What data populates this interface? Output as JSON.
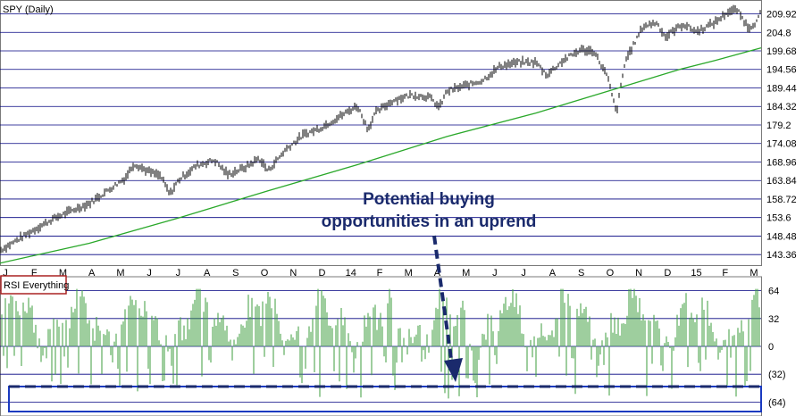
{
  "chart_data": [
    {
      "type": "line",
      "title": "SPY (Daily)",
      "y_ticks": [
        209.92,
        204.8,
        199.68,
        194.56,
        189.44,
        184.32,
        179.2,
        174.08,
        168.96,
        163.84,
        158.72,
        153.6,
        148.48,
        143.36
      ],
      "ylim": [
        140.2,
        213.5
      ],
      "x_ticks": [
        "J",
        "F",
        "M",
        "A",
        "M",
        "J",
        "J",
        "A",
        "S",
        "O",
        "N",
        "D",
        "14",
        "F",
        "M",
        "A",
        "M",
        "J",
        "J",
        "A",
        "S",
        "O",
        "N",
        "D",
        "15",
        "F",
        "M"
      ],
      "grid": true,
      "series": [
        {
          "role": "price",
          "color": "#000000",
          "x": [
            0,
            20,
            40,
            60,
            80,
            100,
            120,
            140,
            150,
            165,
            180,
            190,
            200,
            220,
            240,
            255,
            275,
            290,
            300,
            320,
            340,
            360,
            380,
            400,
            412,
            420,
            440,
            460,
            480,
            492,
            500,
            520,
            540,
            560,
            580,
            600,
            612,
            630,
            650,
            665,
            680,
            690,
            700,
            720,
            735,
            745,
            755,
            765,
            780,
            800,
            815,
            825,
            838,
            848,
            852
          ],
          "y": [
            144.5,
            147.5,
            150.5,
            153.3,
            155.5,
            157.5,
            161.0,
            164.5,
            168.5,
            166.5,
            165.0,
            160.0,
            164.0,
            168.0,
            169.5,
            165.5,
            167.5,
            170.0,
            166.5,
            172.5,
            176.5,
            178.5,
            181.5,
            184.5,
            178.0,
            182.5,
            186.0,
            187.5,
            187.0,
            184.0,
            188.5,
            190.0,
            191.5,
            195.5,
            196.5,
            196.5,
            193.0,
            197.0,
            200.0,
            199.5,
            192.5,
            182.5,
            197.0,
            206.5,
            207.5,
            203.5,
            205.5,
            207.0,
            205.0,
            207.5,
            210.5,
            211.0,
            206.0,
            208.0,
            211.0
          ]
        },
        {
          "role": "moving-average",
          "color": "#2aa82a",
          "x": [
            0,
            100,
            200,
            300,
            400,
            500,
            600,
            700,
            760,
            800,
            852
          ],
          "y": [
            141.0,
            146.5,
            153.5,
            161.0,
            168.2,
            176.0,
            182.5,
            190.0,
            194.5,
            197.0,
            200.5
          ]
        }
      ]
    },
    {
      "type": "bar",
      "title": "RSI Everything",
      "y_ticks": [
        "64",
        "32",
        "0",
        "(32)",
        "(64)"
      ],
      "y_tick_values": [
        64,
        32,
        0,
        -32,
        -64
      ],
      "ylim": [
        -80,
        80
      ],
      "bar_color": "#3e9e3e",
      "grid": true
    }
  ],
  "annotation": {
    "line1": "Potential buying",
    "line2": "opportunities in an uprend"
  },
  "colors": {
    "grid": "#000080",
    "annotation": "#1a2a6c",
    "legend_border": "#aa2222",
    "highlight_box": "#1a3ac0"
  }
}
